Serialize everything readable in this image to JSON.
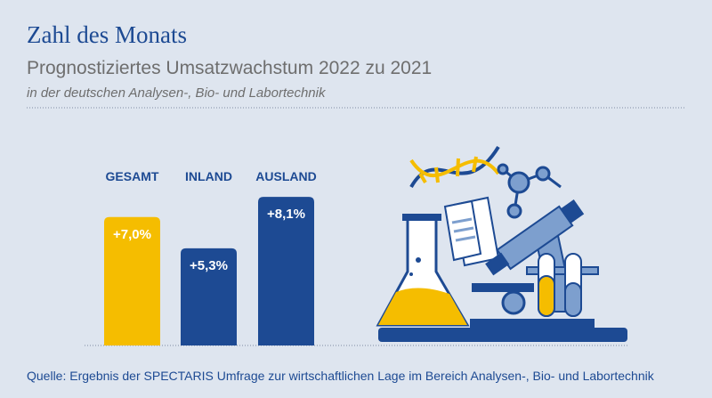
{
  "chart_data": {
    "type": "bar",
    "title": "Zahl des Monats",
    "subtitle": "Prognostiziertes Umsatzwachstum 2022 zu 2021",
    "description": "in der deutschen Analysen-, Bio- und Labortechnik",
    "categories": [
      "GESAMT",
      "INLAND",
      "AUSLAND"
    ],
    "values": [
      7.0,
      5.3,
      8.1
    ],
    "value_labels": [
      "+7,0%",
      "+5,3%",
      "+8,1%"
    ],
    "colors": [
      "#f5bd00",
      "#1d4a93",
      "#1d4a93"
    ],
    "source": "Quelle: Ergebnis der SPECTARIS Umfrage zur wirtschaftlichen Lage im Bereich Analysen-, Bio- und Labortechnik"
  }
}
